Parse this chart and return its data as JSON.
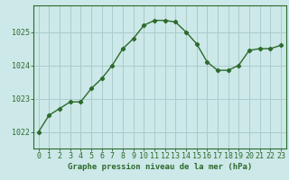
{
  "x": [
    0,
    1,
    2,
    3,
    4,
    5,
    6,
    7,
    8,
    9,
    10,
    11,
    12,
    13,
    14,
    15,
    16,
    17,
    18,
    19,
    20,
    21,
    22,
    23
  ],
  "y": [
    1022.0,
    1022.5,
    1022.7,
    1022.9,
    1022.9,
    1023.3,
    1023.6,
    1024.0,
    1024.5,
    1024.8,
    1025.2,
    1025.35,
    1025.35,
    1025.3,
    1025.0,
    1024.65,
    1024.1,
    1023.85,
    1023.85,
    1024.0,
    1024.45,
    1024.5,
    1024.5,
    1024.6
  ],
  "line_color": "#2d6a2d",
  "marker": "D",
  "marker_size": 2.2,
  "bg_color": "#cce8e8",
  "grid_color": "#aacccc",
  "xlabel": "Graphe pression niveau de la mer (hPa)",
  "xlabel_fontsize": 6.5,
  "xlabel_color": "#2d6a2d",
  "ylabel_ticks": [
    1022,
    1023,
    1024,
    1025
  ],
  "ylim": [
    1021.5,
    1025.8
  ],
  "xlim": [
    -0.5,
    23.5
  ],
  "tick_fontsize": 6.0,
  "tick_color": "#2d6a2d",
  "spine_color": "#2d6a2d",
  "line_width": 1.0
}
